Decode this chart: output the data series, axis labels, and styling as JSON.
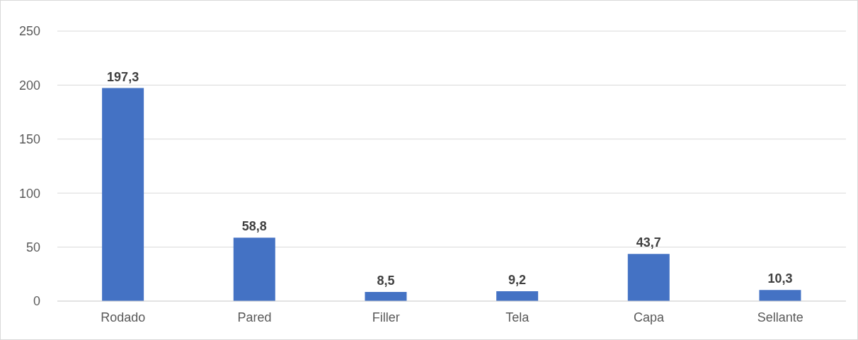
{
  "chart_data": {
    "type": "bar",
    "categories": [
      "Rodado",
      "Pared",
      "Filler",
      "Tela",
      "Capa",
      "Sellante"
    ],
    "values": [
      197.3,
      58.8,
      8.5,
      9.2,
      43.7,
      10.3
    ],
    "value_labels": [
      "197,3",
      "58,8",
      "8,5",
      "9,2",
      "43,7",
      "10,3"
    ],
    "color": "#4472c4",
    "ylim": [
      0,
      250
    ],
    "yticks": [
      0,
      50,
      100,
      150,
      200,
      250
    ],
    "grid": "y",
    "legend": false
  }
}
